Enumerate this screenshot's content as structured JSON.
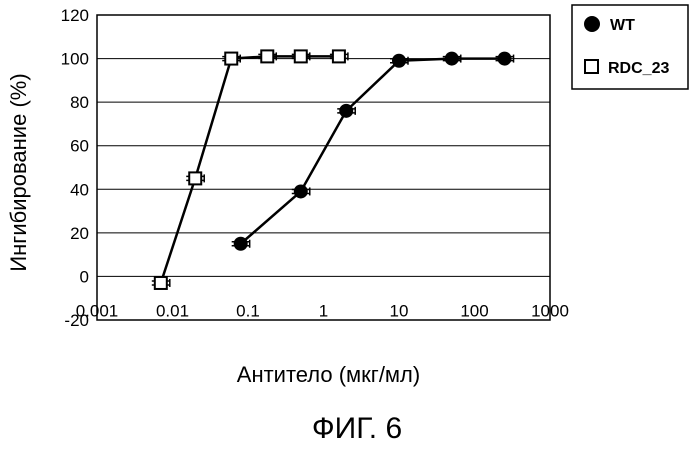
{
  "figure_caption": "ФИГ. 6",
  "chart_data": {
    "type": "line",
    "xlabel": "Антитело (мкг/мл)",
    "ylabel": "Ингибирование (%)",
    "x_scale": "log",
    "xlim": [
      0.001,
      1000
    ],
    "ylim": [
      -20,
      120
    ],
    "x_ticks": [
      0.001,
      0.01,
      0.1,
      1,
      10,
      100,
      1000
    ],
    "x_tick_labels": [
      "0.001",
      "0.01",
      "0.1",
      "1",
      "10",
      "100",
      "1000"
    ],
    "y_ticks": [
      -20,
      0,
      20,
      40,
      60,
      80,
      100,
      120
    ],
    "y_tick_labels": [
      "-20",
      "0",
      "20",
      "40",
      "60",
      "80",
      "100",
      "120"
    ],
    "grid": "horizontal",
    "legend_position": "top-right",
    "error_bars": true,
    "series": [
      {
        "name": "WT",
        "marker": "filled-circle",
        "color": "#000000",
        "x": [
          0.08,
          0.5,
          2,
          10,
          50,
          250
        ],
        "y": [
          15,
          39,
          76,
          99,
          100,
          100
        ]
      },
      {
        "name": "RDC_23",
        "marker": "open-square",
        "color": "#000000",
        "x": [
          0.007,
          0.02,
          0.06,
          0.18,
          0.5,
          1.6
        ],
        "y": [
          -3,
          45,
          100,
          101,
          101,
          101
        ]
      }
    ]
  }
}
